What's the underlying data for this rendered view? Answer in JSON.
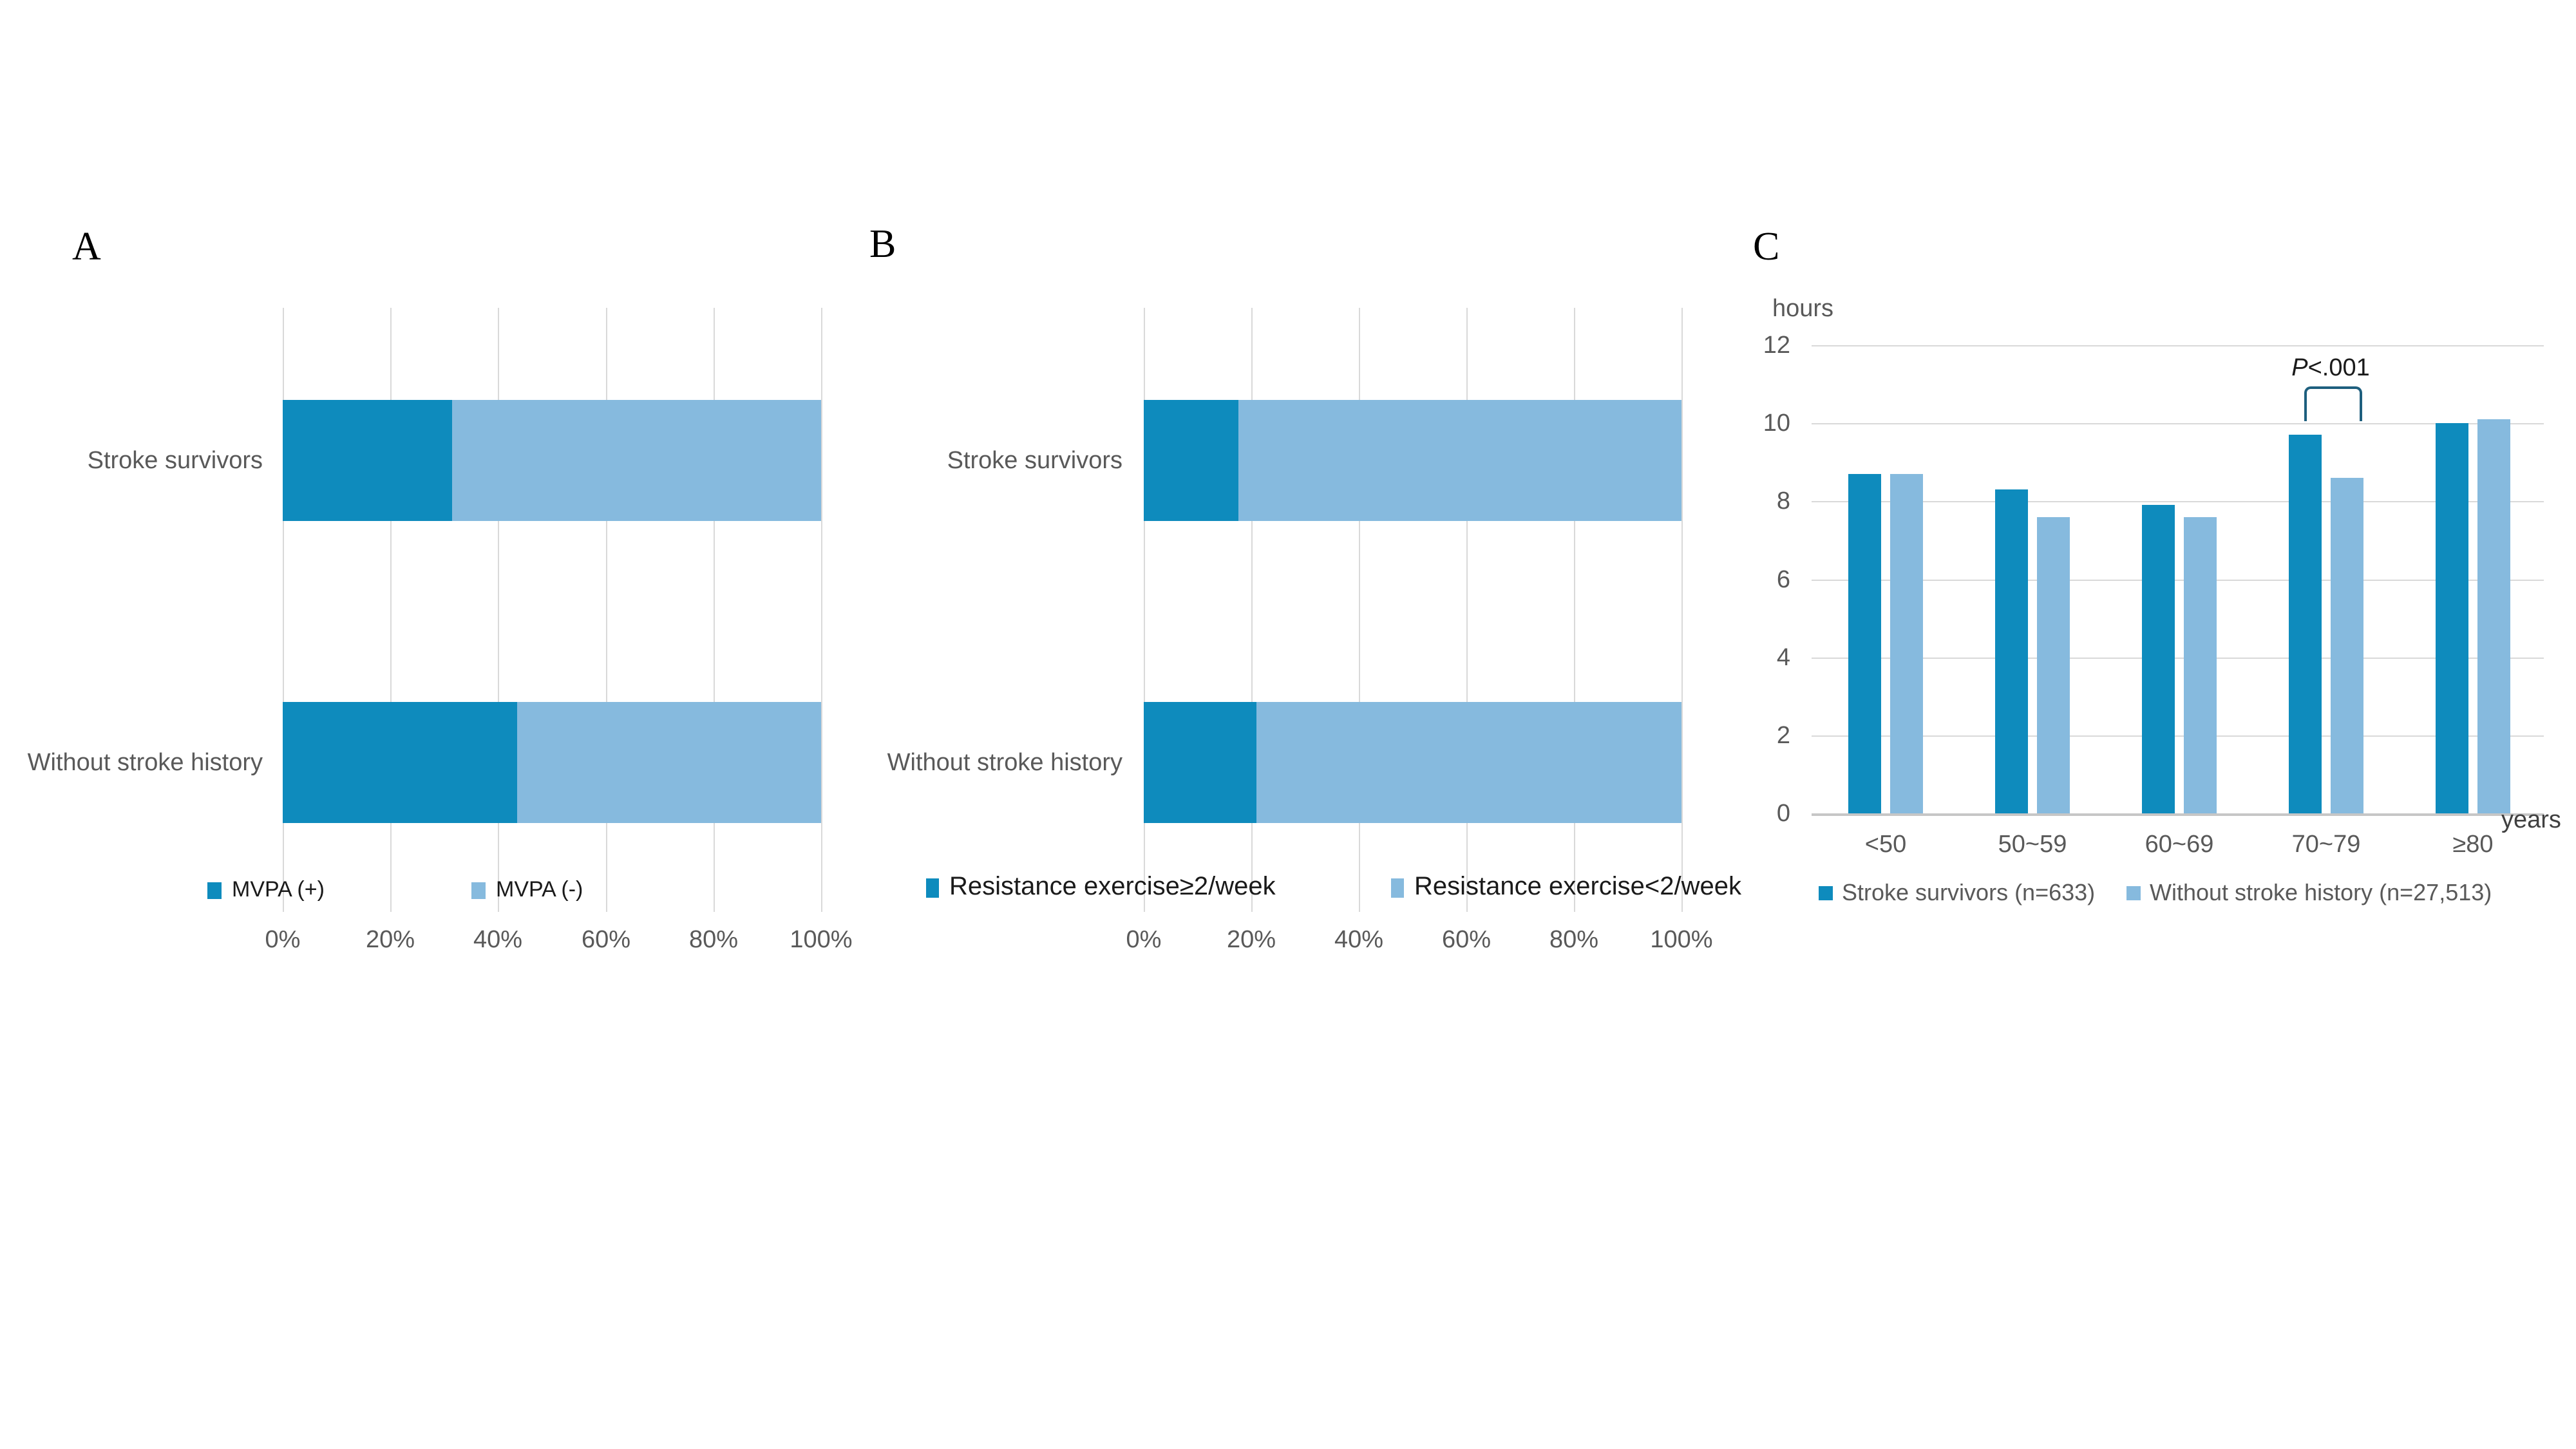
{
  "figure": {
    "panel_labels": [
      "A",
      "B",
      "C"
    ],
    "colors": {
      "series_dark": "#0E8BBD",
      "series_light": "#86BADE",
      "gridline": "#D9D9D9",
      "axis_line": "#C6C6C6",
      "axis_text": "#595959",
      "legend_text_dark": "#1a1a1a",
      "bracket": "#1E5F7E"
    }
  },
  "chart_data": [
    {
      "panel": "A",
      "type": "bar",
      "orientation": "horizontal-stacked-100",
      "categories": [
        "Stroke survivors",
        "Without stroke history"
      ],
      "series": [
        {
          "name": "MVPA (+)",
          "color": "#0E8BBD",
          "values": [
            31.5,
            43.5
          ]
        },
        {
          "name": "MVPA (-)",
          "color": "#86BADE",
          "values": [
            68.5,
            56.5
          ]
        }
      ],
      "x_ticks": [
        "0%",
        "20%",
        "40%",
        "60%",
        "80%",
        "100%"
      ],
      "xlim": [
        0,
        100
      ],
      "grid": true,
      "legend_position": "bottom"
    },
    {
      "panel": "B",
      "type": "bar",
      "orientation": "horizontal-stacked-100",
      "categories": [
        "Stroke survivors",
        "Without stroke history"
      ],
      "series": [
        {
          "name": "Resistance exercise≥2/week",
          "color": "#0E8BBD",
          "values": [
            17.6,
            20.9
          ]
        },
        {
          "name": "Resistance exercise<2/week",
          "color": "#86BADE",
          "values": [
            82.4,
            79.1
          ]
        }
      ],
      "x_ticks": [
        "0%",
        "20%",
        "40%",
        "60%",
        "80%",
        "100%"
      ],
      "xlim": [
        0,
        100
      ],
      "grid": true,
      "legend_position": "bottom"
    },
    {
      "panel": "C",
      "type": "bar",
      "orientation": "vertical-grouped",
      "categories": [
        "<50",
        "50~59",
        "60~69",
        "70~79",
        "≥80"
      ],
      "series": [
        {
          "name": "Stroke survivors (n=633)",
          "color": "#0E8BBD",
          "values": [
            8.7,
            8.3,
            7.9,
            9.7,
            10.0
          ]
        },
        {
          "name": "Without stroke history (n=27,513)",
          "color": "#86BADE",
          "values": [
            8.7,
            7.6,
            7.6,
            8.6,
            10.1
          ]
        }
      ],
      "ylabel": "hours",
      "xlabel": "years",
      "y_ticks": [
        0,
        2,
        4,
        6,
        8,
        10,
        12
      ],
      "ylim": [
        0,
        12
      ],
      "grid": true,
      "annotation": {
        "text": "P<.001",
        "target_category": "70~79"
      },
      "legend_position": "bottom"
    }
  ]
}
